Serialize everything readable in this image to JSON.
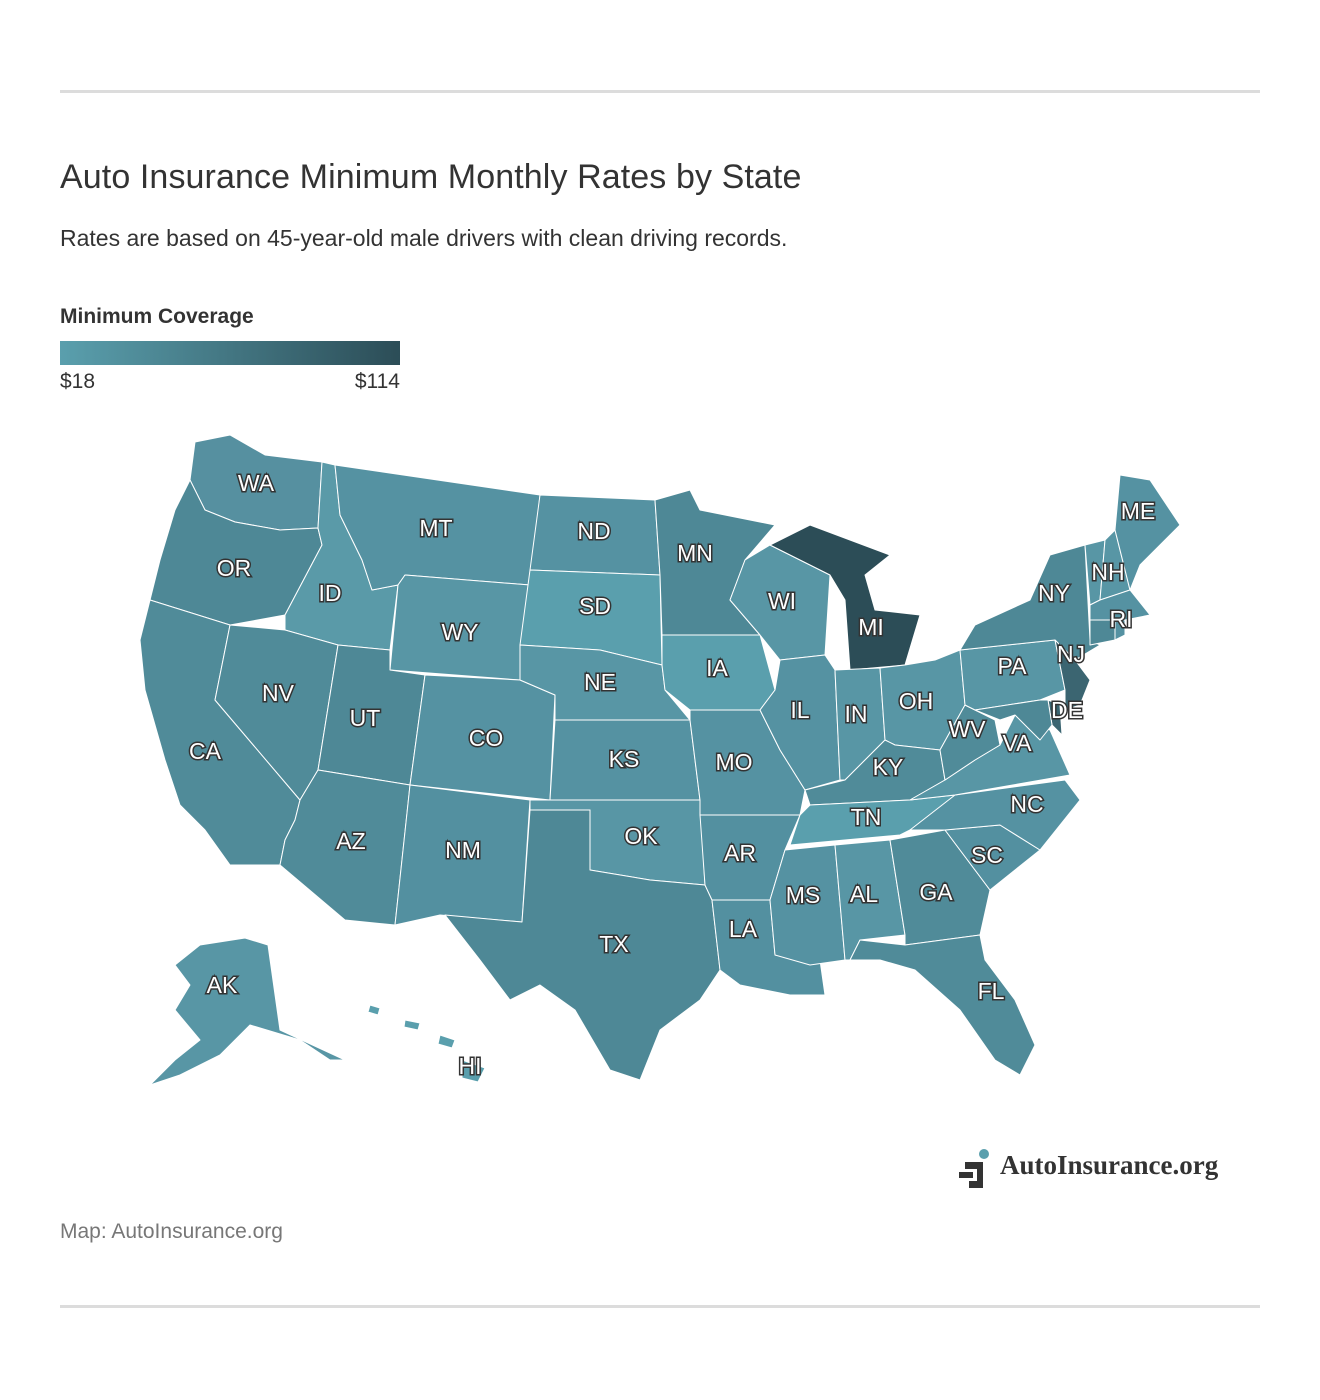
{
  "header": {
    "title": "Auto Insurance Minimum Monthly Rates by State",
    "subtitle": "Rates are based on 45-year-old male drivers with clean driving records."
  },
  "legend": {
    "title": "Minimum Coverage",
    "min_label": "$18",
    "max_label": "$114",
    "min_color": "#5a9fad",
    "max_color": "#2c4d57"
  },
  "map": {
    "region": "United States",
    "state_labels": [
      "WA",
      "OR",
      "CA",
      "ID",
      "NV",
      "MT",
      "WY",
      "UT",
      "AZ",
      "CO",
      "NM",
      "ND",
      "SD",
      "NE",
      "KS",
      "OK",
      "TX",
      "MN",
      "IA",
      "MO",
      "AR",
      "LA",
      "WI",
      "IL",
      "MS",
      "MI",
      "IN",
      "KY",
      "TN",
      "AL",
      "OH",
      "GA",
      "FL",
      "SC",
      "NC",
      "VA",
      "WV",
      "PA",
      "NY",
      "NJ",
      "DE",
      "ME",
      "NH",
      "RI",
      "AK",
      "HI"
    ]
  },
  "branding": {
    "logo_text": "AutoInsurance.org"
  },
  "footer": {
    "source": "Map: AutoInsurance.org"
  }
}
